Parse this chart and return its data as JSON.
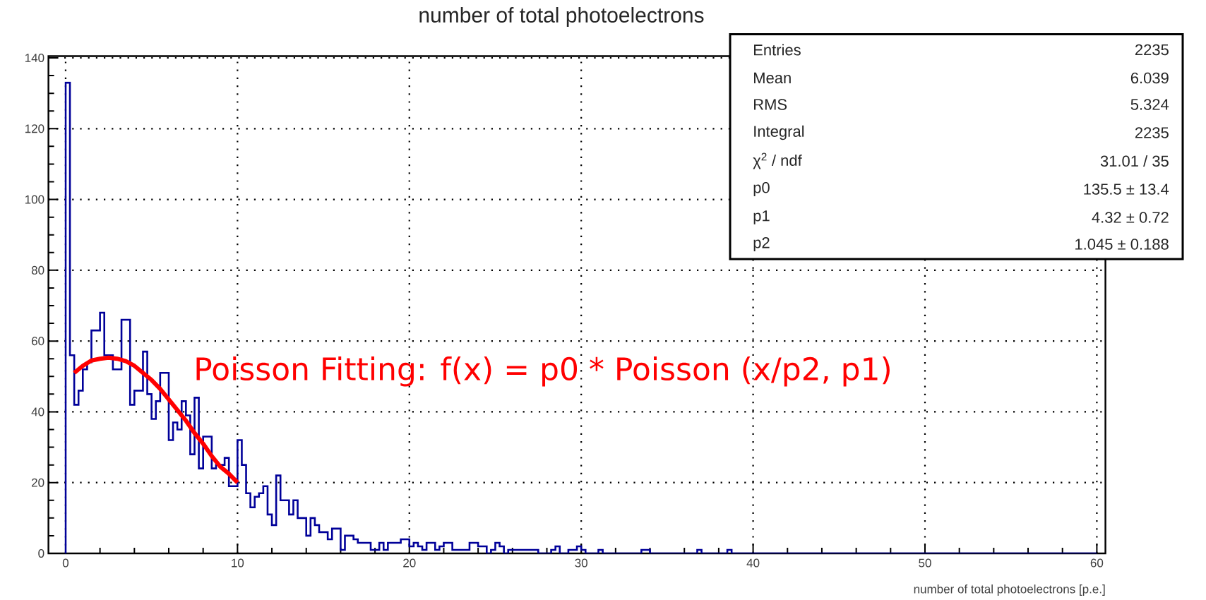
{
  "chart_data": {
    "type": "histogram",
    "title": "number of total photoelectrons",
    "xlabel": "number of total photoelectrons [p.e.]",
    "bins": [
      0,
      0.25,
      0.5,
      0.75,
      1,
      1.25,
      1.5,
      1.75,
      2,
      2.25,
      2.5,
      2.75,
      3,
      3.25,
      3.5,
      3.75,
      4,
      4.25,
      4.5,
      4.75,
      5,
      5.25,
      5.5,
      5.75,
      6,
      6.25,
      6.5,
      6.75,
      7,
      7.25,
      7.5,
      7.75,
      8,
      8.25,
      8.5,
      8.75,
      9,
      9.25,
      9.5,
      9.75,
      10,
      10.25,
      10.5,
      10.75,
      11,
      11.25,
      11.5,
      11.75,
      12,
      12.25,
      12.5,
      12.75,
      13,
      13.25,
      13.5,
      13.75,
      14,
      14.25,
      14.5,
      14.75,
      15,
      15.25,
      15.5,
      15.75,
      16,
      16.25,
      16.5,
      16.75,
      17,
      17.25,
      17.5,
      17.75,
      18,
      18.25,
      18.5,
      18.75,
      19,
      19.25,
      19.5,
      19.75,
      20,
      20.25,
      20.5,
      20.75,
      21,
      21.25,
      21.5,
      21.75,
      22,
      22.25,
      22.5,
      22.75,
      23,
      23.25,
      23.5,
      23.75,
      24,
      24.25,
      24.5,
      24.75,
      25,
      25.25,
      25.5,
      25.75,
      26,
      26.25,
      26.5,
      26.75,
      27,
      27.25,
      27.5,
      27.75,
      28,
      28.25,
      28.5,
      28.75,
      29,
      29.25,
      29.5,
      29.75,
      30,
      30.25,
      30.5,
      30.75,
      31,
      31.25,
      31.5,
      31.75,
      32,
      32.25,
      32.5,
      32.75,
      33,
      33.25,
      33.5,
      33.75,
      34,
      34.25,
      34.5,
      34.75,
      35,
      35.25,
      35.5,
      35.75,
      36,
      36.25,
      36.5,
      36.75,
      37,
      37.25,
      37.5,
      37.75,
      38,
      38.25,
      38.5,
      38.75,
      39,
      39.25,
      39.5,
      39.75,
      40,
      40.25,
      40.5,
      40.75,
      41,
      41.25,
      41.5,
      41.75,
      42,
      42.25,
      42.5,
      42.75,
      43,
      43.25,
      43.5,
      43.75,
      44,
      44.25,
      44.5,
      44.75,
      45,
      45.25,
      45.5,
      45.75,
      46,
      46.25,
      46.5,
      46.75,
      47,
      47.25,
      47.5,
      47.75,
      48,
      48.25,
      48.5,
      48.75,
      49,
      49.25,
      49.5,
      49.75,
      50,
      50.25,
      50.5,
      50.75,
      51,
      51.25,
      51.5,
      51.75,
      52,
      52.25,
      52.5,
      52.75,
      53,
      53.25,
      53.5,
      53.75,
      54,
      54.25,
      54.5,
      54.75,
      55,
      55.25,
      55.5,
      55.75,
      56,
      56.25,
      56.5,
      56.75,
      57,
      57.25,
      57.5,
      57.75,
      58,
      58.25,
      58.5,
      58.75,
      59,
      59.25,
      59.5,
      59.75,
      60
    ],
    "values": [
      133,
      56,
      42,
      46,
      52,
      54,
      63,
      63,
      68,
      56,
      56,
      52,
      52,
      66,
      66,
      42,
      46,
      46,
      57,
      45,
      38,
      43,
      51,
      51,
      32,
      37,
      35,
      43,
      39,
      28,
      44,
      24,
      33,
      33,
      24,
      25,
      25,
      27,
      19,
      19,
      32,
      25,
      17,
      13,
      16,
      17,
      19,
      11,
      8,
      22,
      15,
      15,
      11,
      15,
      10,
      10,
      5,
      10,
      8,
      6,
      6,
      4,
      7,
      7,
      1,
      5,
      5,
      4,
      3,
      3,
      3,
      1,
      1,
      3,
      1,
      3,
      3,
      3,
      4,
      4,
      2,
      3,
      2,
      1,
      3,
      3,
      1,
      2,
      3,
      3,
      1,
      1,
      1,
      1,
      3,
      3,
      2,
      2,
      0,
      1,
      3,
      2,
      0,
      1,
      1,
      1,
      1,
      1,
      1,
      1,
      0,
      0,
      0,
      1,
      2,
      0,
      0,
      1,
      1,
      2,
      1,
      0,
      0,
      0,
      1,
      0,
      0,
      0,
      0,
      0,
      0,
      0,
      0,
      0,
      1,
      1,
      0,
      0,
      0,
      0,
      0,
      0,
      0,
      0,
      0,
      0,
      0,
      1,
      0,
      0,
      0,
      0,
      0,
      0,
      1,
      0,
      0,
      0,
      0,
      0,
      0,
      0,
      0,
      0,
      0,
      0,
      0,
      0,
      0,
      0,
      0,
      0,
      0,
      0,
      0,
      0,
      0,
      0,
      0,
      0,
      0,
      0,
      0,
      0,
      0,
      0,
      0,
      0,
      0,
      0,
      0,
      0,
      0,
      0,
      0,
      0,
      0,
      0,
      0,
      0,
      0,
      0,
      0,
      0,
      0,
      0,
      0,
      0,
      0,
      0,
      0,
      0,
      0,
      0,
      0,
      0,
      0,
      0,
      0,
      0,
      0,
      0,
      0,
      0,
      0,
      0,
      0,
      0,
      0,
      0,
      0,
      0,
      0,
      0,
      0,
      0,
      0,
      0,
      0,
      0
    ],
    "color": "#000099",
    "series": [
      {
        "type": "line",
        "color": "#ff0000",
        "x": [
          0.5,
          1,
          1.5,
          2,
          2.5,
          3,
          3.5,
          4,
          4.5,
          5,
          5.5,
          6,
          6.5,
          7,
          7.5,
          8,
          8.5,
          9,
          9.5,
          10
        ],
        "values": [
          51,
          53,
          54.5,
          55,
          55.3,
          55,
          54.3,
          53,
          51,
          49,
          46.5,
          43.5,
          40.5,
          37.5,
          34,
          31,
          27.5,
          24.5,
          22.5,
          20
        ]
      }
    ],
    "xlim": [
      -1,
      60.5
    ],
    "ylim": [
      0,
      140.5
    ],
    "xticks": [
      0,
      10,
      20,
      30,
      40,
      50,
      60
    ],
    "yticks": [
      0,
      20,
      40,
      60,
      80,
      100,
      120,
      140
    ],
    "grid": true,
    "annotations": [
      "Entries",
      "2235",
      "Mean",
      "6.039",
      "RMS",
      "5.324",
      "Integral",
      "2235",
      "χ$^{2}$ / ndf",
      "31.01 / 35",
      "p0",
      "135.5  ± 13.4",
      "p1",
      "4.32  ± 0.72",
      "p2",
      "1.045  ± 0.188",
      "Poisson Fitting: f(x) = p0 * Poisson (x/p2, p1)"
    ]
  }
}
